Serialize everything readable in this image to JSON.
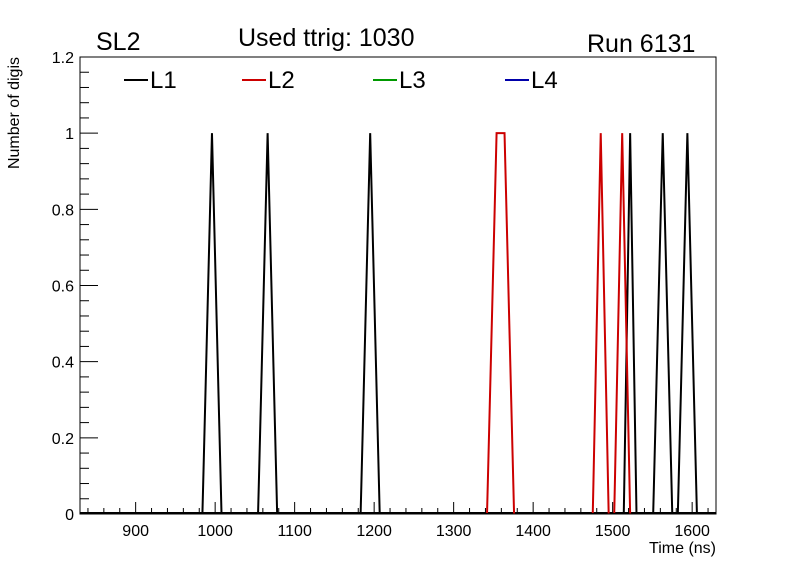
{
  "header": {
    "left_label": "SL2",
    "center_label": "Used ttrig: 1030",
    "right_label": "Run 6131"
  },
  "chart_data": {
    "type": "line",
    "title": "Used ttrig: 1030",
    "xlabel": "Time (ns)",
    "ylabel": "Number of digis",
    "xlim": [
      830,
      1630
    ],
    "ylim": [
      0,
      1.2
    ],
    "x_ticks": [
      900,
      1000,
      1100,
      1200,
      1300,
      1400,
      1500,
      1600
    ],
    "x_tick_labels": [
      "900",
      "1000",
      "1100",
      "1200",
      "1300",
      "1400",
      "1500",
      "1600"
    ],
    "y_ticks": [
      0,
      0.2,
      0.4,
      0.6,
      0.8,
      1,
      1.2
    ],
    "y_tick_labels": [
      "0",
      "0.2",
      "0.4",
      "0.6",
      "0.8",
      "1",
      "1.2"
    ],
    "grid": false,
    "legend_position": "top",
    "series": [
      {
        "name": "L1",
        "color": "#000000",
        "peaks": [
          {
            "center": 996,
            "height": 1,
            "half_width": 12
          },
          {
            "center": 1066,
            "height": 1,
            "half_width": 12
          },
          {
            "center": 1195,
            "height": 1,
            "half_width": 12
          },
          {
            "center": 1522,
            "height": 1,
            "half_width": 8
          },
          {
            "center": 1563,
            "height": 1,
            "half_width": 12
          },
          {
            "center": 1594,
            "height": 1,
            "half_width": 12
          }
        ]
      },
      {
        "name": "L2",
        "color": "#cc0000",
        "peaks": [
          {
            "center": 1359,
            "height": 1,
            "half_width": 17,
            "flat_top": 10
          },
          {
            "center": 1485,
            "height": 1,
            "half_width": 10
          },
          {
            "center": 1512,
            "height": 1,
            "half_width": 10
          }
        ]
      },
      {
        "name": "L3",
        "color": "#009900",
        "peaks": []
      },
      {
        "name": "L4",
        "color": "#0000aa",
        "peaks": []
      }
    ]
  }
}
